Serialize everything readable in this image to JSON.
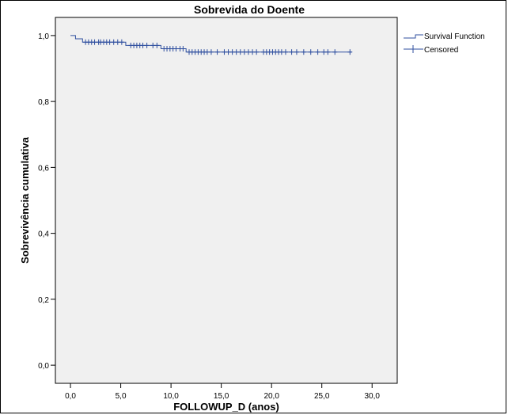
{
  "chart_data": {
    "type": "line",
    "title": "Sobrevida do Doente",
    "xlabel": "FOLLOWUP_D (anos)",
    "ylabel": "Sobrevivência cumulativa",
    "xlim": [
      -1.5,
      32.5
    ],
    "ylim": [
      -0.055,
      1.055
    ],
    "x_ticks": [
      0,
      5,
      10,
      15,
      20,
      25,
      30
    ],
    "x_tick_labels": [
      "0,0",
      "5,0",
      "10,0",
      "15,0",
      "20,0",
      "25,0",
      "30,0"
    ],
    "y_ticks": [
      0,
      0.2,
      0.4,
      0.6,
      0.8,
      1.0
    ],
    "y_tick_labels": [
      "0,0",
      "0,2",
      "0,4",
      "0,6",
      "0,8",
      "1,0"
    ],
    "grid": false,
    "legend_position": "top-right",
    "colors": {
      "line": "#2f4f9f",
      "plot_bg": "#f0f0f0"
    },
    "series": [
      {
        "name": "Survival Function",
        "steps": [
          [
            0,
            1.0
          ],
          [
            0.5,
            0.99
          ],
          [
            1.2,
            0.98
          ],
          [
            5.5,
            0.97
          ],
          [
            9.0,
            0.96
          ],
          [
            11.5,
            0.95
          ],
          [
            28.0,
            0.95
          ]
        ]
      },
      {
        "name": "Censored",
        "marker": "+",
        "x": [
          1.5,
          1.8,
          2.1,
          2.4,
          2.8,
          3.0,
          3.3,
          3.6,
          3.9,
          4.3,
          4.7,
          5.1,
          6.0,
          6.3,
          6.6,
          6.9,
          7.2,
          7.6,
          8.2,
          8.6,
          9.3,
          9.6,
          9.9,
          10.2,
          10.5,
          10.9,
          11.2,
          11.8,
          12.1,
          12.4,
          12.7,
          13.0,
          13.3,
          13.6,
          14.0,
          14.6,
          15.3,
          15.7,
          16.1,
          16.5,
          16.9,
          17.3,
          17.7,
          18.1,
          18.5,
          19.2,
          19.5,
          19.8,
          20.1,
          20.4,
          20.7,
          21.0,
          21.4,
          22.0,
          22.5,
          23.2,
          23.9,
          24.6,
          25.2,
          25.6,
          26.3,
          27.8
        ],
        "y": [
          0.98,
          0.98,
          0.98,
          0.98,
          0.98,
          0.98,
          0.98,
          0.98,
          0.98,
          0.98,
          0.98,
          0.98,
          0.97,
          0.97,
          0.97,
          0.97,
          0.97,
          0.97,
          0.97,
          0.97,
          0.96,
          0.96,
          0.96,
          0.96,
          0.96,
          0.96,
          0.96,
          0.95,
          0.95,
          0.95,
          0.95,
          0.95,
          0.95,
          0.95,
          0.95,
          0.95,
          0.95,
          0.95,
          0.95,
          0.95,
          0.95,
          0.95,
          0.95,
          0.95,
          0.95,
          0.95,
          0.95,
          0.95,
          0.95,
          0.95,
          0.95,
          0.95,
          0.95,
          0.95,
          0.95,
          0.95,
          0.95,
          0.95,
          0.95,
          0.95,
          0.95,
          0.95
        ]
      }
    ]
  }
}
